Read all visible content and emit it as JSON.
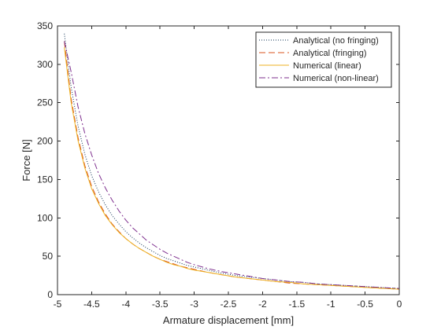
{
  "chart_data": {
    "type": "line",
    "title": "",
    "xlabel": "Armature displacement [mm]",
    "ylabel": "Force [N]",
    "xlim": [
      -5,
      0
    ],
    "ylim": [
      0,
      350
    ],
    "grid": false,
    "legend_position": "top-right",
    "x_ticks": [
      -5,
      -4.5,
      -4,
      -3.5,
      -3,
      -2.5,
      -2,
      -1.5,
      -1,
      -0.5,
      0
    ],
    "x_tick_labels": [
      "-5",
      "-4.5",
      "-4",
      "-3.5",
      "-3",
      "-2.5",
      "-2",
      "-1.5",
      "-1",
      "-0.5",
      "0"
    ],
    "y_ticks": [
      0,
      50,
      100,
      150,
      200,
      250,
      300,
      350
    ],
    "y_tick_labels": [
      "0",
      "50",
      "100",
      "150",
      "200",
      "250",
      "300",
      "350"
    ],
    "x": [
      -4.9,
      -4.8,
      -4.7,
      -4.6,
      -4.5,
      -4.4,
      -4.3,
      -4.2,
      -4.1,
      -4.0,
      -3.9,
      -3.8,
      -3.7,
      -3.6,
      -3.5,
      -3.4,
      -3.3,
      -3.2,
      -3.1,
      -3.0,
      -2.8,
      -2.6,
      -2.4,
      -2.2,
      -2.0,
      -1.8,
      -1.6,
      -1.4,
      -1.2,
      -1.0,
      -0.8,
      -0.6,
      -0.4,
      -0.2,
      0.0
    ],
    "series": [
      {
        "name": "Analytical (no fringing)",
        "color": "#0b2f52",
        "dash": "1 2",
        "values": [
          340,
          270,
          220,
          183,
          155,
          134,
          117,
          103,
          92,
          82,
          74,
          67,
          61,
          56,
          51,
          47,
          44,
          41,
          38,
          36,
          32,
          28,
          25,
          23,
          21,
          19,
          17,
          16,
          14,
          13,
          12,
          11,
          10,
          9,
          8
        ]
      },
      {
        "name": "Analytical (fringing)",
        "color": "#d9531e",
        "dash": "8 4",
        "values": [
          330,
          255,
          205,
          168,
          141,
          121,
          105,
          92,
          82,
          73,
          66,
          60,
          55,
          50,
          46,
          43,
          40,
          37,
          35,
          33,
          29,
          26,
          23,
          21,
          19,
          17,
          15,
          14,
          13,
          12,
          11,
          10,
          9,
          8,
          7
        ]
      },
      {
        "name": "Numerical (linear)",
        "color": "#edb120",
        "dash": "",
        "values": [
          322,
          250,
          201,
          165,
          138,
          119,
          103,
          91,
          81,
          73,
          66,
          60,
          55,
          50,
          46,
          42,
          39,
          37,
          34,
          32,
          29,
          26,
          23,
          21,
          19,
          17,
          16,
          14,
          13,
          12,
          11,
          10,
          9,
          8,
          7
        ]
      },
      {
        "name": "Numerical (non-linear)",
        "color": "#7e2f8e",
        "dash": "8 3 2 3",
        "values": [
          330,
          290,
          245,
          210,
          182,
          158,
          139,
          123,
          109,
          97,
          87,
          79,
          71,
          65,
          59,
          54,
          50,
          46,
          42,
          39,
          34,
          30,
          27,
          24,
          21,
          19,
          17,
          16,
          14,
          13,
          12,
          11,
          10,
          9,
          8
        ]
      }
    ]
  }
}
